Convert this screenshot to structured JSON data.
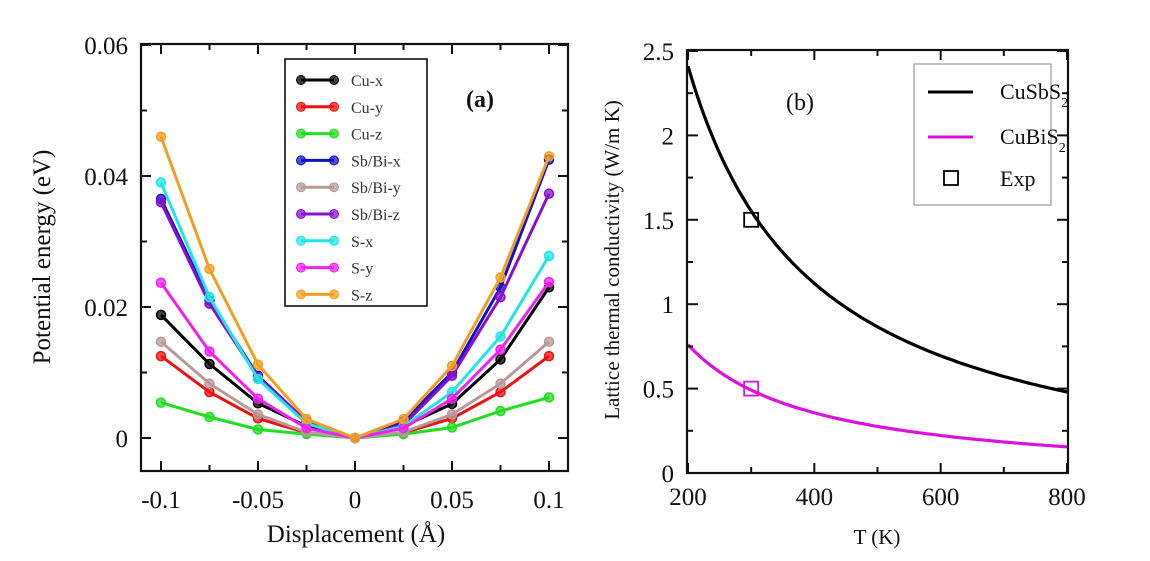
{
  "chart_data": [
    {
      "type": "line",
      "panel_label": "(a)",
      "xlabel": "Displacement (Å)",
      "ylabel": "Potential energy (eV)",
      "xlim": [
        -0.115,
        0.11
      ],
      "ylim": [
        -0.005,
        0.06
      ],
      "x_ticks": [
        -0.1,
        -0.05,
        0,
        0.05,
        0.1
      ],
      "x_tick_labels": [
        "-0.1",
        "-0.05",
        "0",
        "0.05",
        "0.1"
      ],
      "y_ticks": [
        0,
        0.02,
        0.04,
        0.06
      ],
      "y_tick_labels": [
        "0",
        "0.02",
        "0.04",
        "0.06"
      ],
      "legend_position": "top-center",
      "grid": false,
      "x": [
        -0.1,
        -0.075,
        -0.05,
        -0.025,
        0,
        0.025,
        0.05,
        0.075,
        0.1
      ],
      "series": [
        {
          "name": "Cu-x",
          "color": "#000000",
          "values": [
            0.0188,
            0.0113,
            0.0053,
            0.0018,
            0,
            0.0018,
            0.0052,
            0.012,
            0.023
          ]
        },
        {
          "name": "Cu-y",
          "color": "#ee1111",
          "values": [
            0.0125,
            0.007,
            0.003,
            0.0008,
            0,
            0.0008,
            0.003,
            0.007,
            0.0125
          ]
        },
        {
          "name": "Cu-z",
          "color": "#22dd22",
          "values": [
            0.0054,
            0.0032,
            0.0013,
            0.0006,
            0,
            0.0006,
            0.0016,
            0.0041,
            0.0062
          ]
        },
        {
          "name": "Sb/Bi-x",
          "color": "#1111cc",
          "values": [
            0.0365,
            0.021,
            0.0095,
            0.0025,
            0,
            0.0025,
            0.01,
            0.023,
            0.0425
          ]
        },
        {
          "name": "Sb/Bi-y",
          "color": "#b89a9a",
          "values": [
            0.0147,
            0.0083,
            0.0036,
            0.0009,
            0,
            0.0009,
            0.0036,
            0.0083,
            0.0147
          ]
        },
        {
          "name": "Sb/Bi-z",
          "color": "#8811cc",
          "values": [
            0.036,
            0.0205,
            0.0093,
            0.0025,
            0,
            0.002,
            0.0095,
            0.0215,
            0.0373
          ]
        },
        {
          "name": "S-x",
          "color": "#22e5e5",
          "values": [
            0.039,
            0.0215,
            0.009,
            0.0022,
            0,
            0.0018,
            0.007,
            0.0155,
            0.0278
          ]
        },
        {
          "name": "S-y",
          "color": "#ee22ee",
          "values": [
            0.0237,
            0.0132,
            0.006,
            0.0015,
            0,
            0.0015,
            0.006,
            0.0135,
            0.0238
          ]
        },
        {
          "name": "S-z",
          "color": "#f0a020",
          "values": [
            0.046,
            0.0258,
            0.0112,
            0.0029,
            0,
            0.0029,
            0.011,
            0.0245,
            0.043
          ]
        }
      ]
    },
    {
      "type": "line",
      "panel_label": "(b)",
      "xlabel": "T (K)",
      "ylabel": "Lattice thermal conductivity (W/m K)",
      "xlim": [
        200,
        800
      ],
      "ylim": [
        0,
        2.5
      ],
      "x_ticks": [
        200,
        400,
        600,
        800
      ],
      "x_tick_labels": [
        "200",
        "400",
        "600",
        "800"
      ],
      "y_ticks": [
        0,
        0.5,
        1,
        1.5,
        2,
        2.5
      ],
      "y_tick_labels": [
        "0",
        "0.5",
        "1",
        "1.5",
        "2",
        "2.5"
      ],
      "legend_position": "top-right",
      "grid": false,
      "series": [
        {
          "name": "CuSbS",
          "subscript": "2",
          "color": "#000000",
          "style": "line",
          "model": "inverse-T",
          "k_at_200": 2.41,
          "k_at_800": 0.48
        },
        {
          "name": "CuBiS",
          "subscript": "2",
          "color": "#dd11dd",
          "style": "line",
          "model": "inverse-T",
          "k_at_200": 0.76,
          "k_at_800": 0.155
        }
      ],
      "experimental": {
        "name": "Exp",
        "legend_color": "#000000",
        "points": [
          {
            "x": 300,
            "y": 1.5,
            "color": "#000000"
          },
          {
            "x": 300,
            "y": 0.5,
            "color": "#dd11dd"
          }
        ]
      }
    }
  ]
}
